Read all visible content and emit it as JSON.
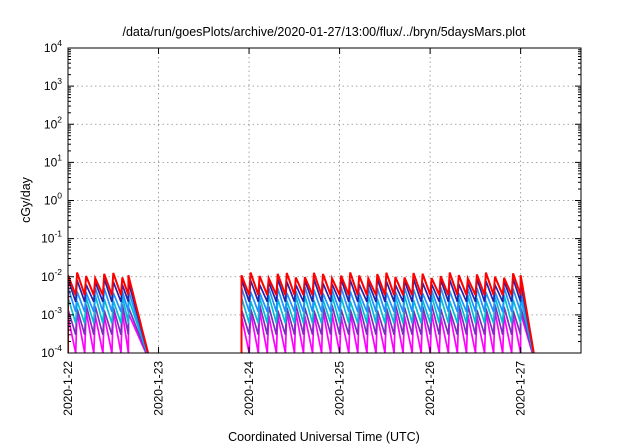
{
  "chart_data": {
    "type": "line",
    "title": "/data/run/goesPlots/archive/2020-01-27/13:00/flux/../bryn/5daysMars.plot",
    "xlabel": "Coordinated Universal Time (UTC)",
    "ylabel": "cGy/day",
    "xlim": [
      "2020-01-22 00:00",
      "2020-01-27 16:00"
    ],
    "ylim": [
      0.0001,
      10000
    ],
    "yscale": "log",
    "x_ticks": [
      "2020-1-22",
      "2020-1-23",
      "2020-1-24",
      "2020-1-25",
      "2020-1-26",
      "2020-1-27"
    ],
    "y_ticks": [
      {
        "value": 10000,
        "base": "10",
        "exp": "4"
      },
      {
        "value": 1000,
        "base": "10",
        "exp": "3"
      },
      {
        "value": 100,
        "base": "10",
        "exp": "2"
      },
      {
        "value": 10,
        "base": "10",
        "exp": "1"
      },
      {
        "value": 1,
        "base": "10",
        "exp": "0"
      },
      {
        "value": 0.1,
        "base": "10",
        "exp": "-1"
      },
      {
        "value": 0.01,
        "base": "10",
        "exp": "-2"
      },
      {
        "value": 0.001,
        "base": "10",
        "exp": "-3"
      },
      {
        "value": 0.0001,
        "base": "10",
        "exp": "-4"
      }
    ],
    "grid": true,
    "legend": "none",
    "segments": [
      {
        "start": "2020-01-22 00:00",
        "end": "2020-01-22 16:00",
        "period_hours": 2.4,
        "tail_end": "2020-01-22 22:00"
      },
      {
        "start": "2020-01-23 22:00",
        "end": "2020-01-27 00:00",
        "period_hours": 2.4,
        "tail_end": "2020-01-27 04:00"
      }
    ],
    "series": [
      {
        "color": "#ff0000",
        "peak": 0.011,
        "trough": 0.0033
      },
      {
        "color": "#2222aa",
        "peak": 0.0075,
        "trough": 0.0022
      },
      {
        "color": "#1e90ff",
        "peak": 0.0045,
        "trough": 0.0012
      },
      {
        "color": "#00bcd4",
        "peak": 0.0028,
        "trough": 0.0006
      },
      {
        "color": "#7b2fbe",
        "peak": 0.0016,
        "trough": 0.0003
      },
      {
        "color": "#ff00ff",
        "peak": 0.0011,
        "trough": 0.0001
      }
    ]
  }
}
